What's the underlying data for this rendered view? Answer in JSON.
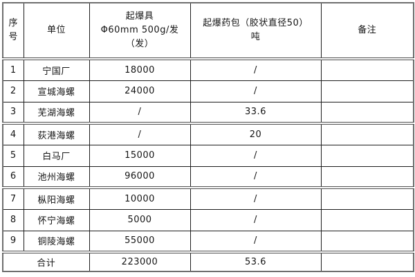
{
  "colors": {
    "background": "#ffffff",
    "grid_line": "#1c1c1c",
    "frame_line": "#6e6e6e",
    "text": "#141414"
  },
  "table": {
    "header": {
      "serial": "序号",
      "unit": "单位",
      "detonator": "起爆具\nΦ60mm 500g/发\n（发）",
      "charge": "起爆药包（胶状直径50）\n吨",
      "note": "备注"
    },
    "rows": [
      {
        "no": "1",
        "unit": "宁国厂",
        "detonator": "18000",
        "charge": "/",
        "note": ""
      },
      {
        "no": "2",
        "unit": "宣城海螺",
        "detonator": "24000",
        "charge": "/",
        "note": ""
      },
      {
        "no": "3",
        "unit": "芜湖海螺",
        "detonator": "/",
        "charge": "33.6",
        "note": ""
      },
      {
        "no": "4",
        "unit": "荻港海螺",
        "detonator": "/",
        "charge": "20",
        "note": ""
      },
      {
        "no": "5",
        "unit": "白马厂",
        "detonator": "15000",
        "charge": "/",
        "note": ""
      },
      {
        "no": "6",
        "unit": "池州海螺",
        "detonator": "96000",
        "charge": "/",
        "note": ""
      },
      {
        "no": "7",
        "unit": "枞阳海螺",
        "detonator": "10000",
        "charge": "/",
        "note": ""
      },
      {
        "no": "8",
        "unit": "怀宁海螺",
        "detonator": "5000",
        "charge": "/",
        "note": ""
      },
      {
        "no": "9",
        "unit": "铜陵海螺",
        "detonator": "55000",
        "charge": "/",
        "note": ""
      }
    ],
    "total_row": {
      "label": "合计",
      "detonator": "223000",
      "charge": "53.6",
      "note": ""
    }
  }
}
